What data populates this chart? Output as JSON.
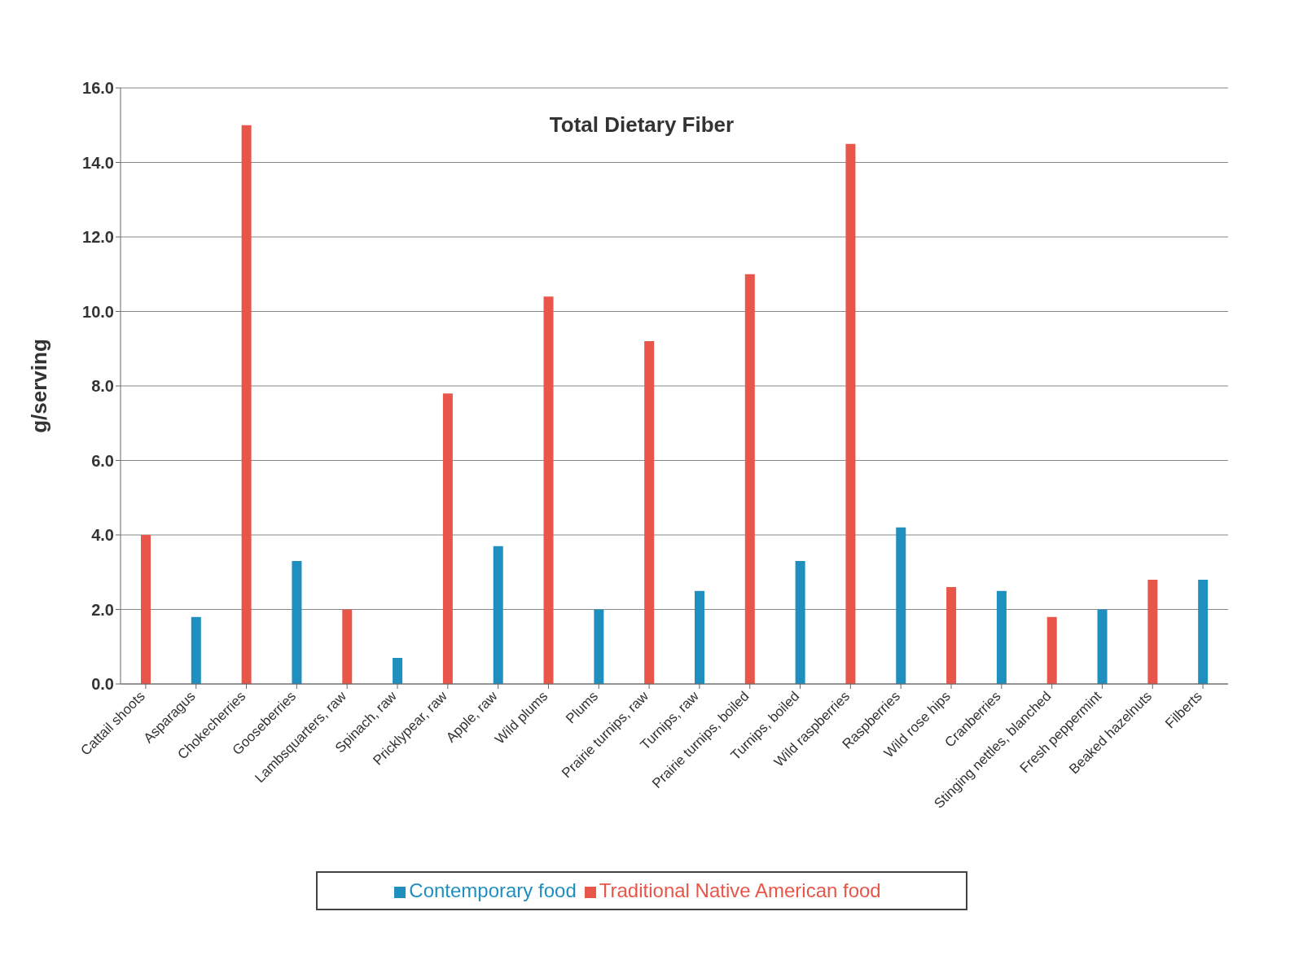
{
  "chart_data": {
    "type": "bar",
    "title": "Total Dietary Fiber",
    "ylabel": "g/serving",
    "categories": [
      "Cattail shoots",
      "Asparagus",
      "Chokecherries",
      "Gooseberries",
      "Lambsquarters, raw",
      "Spinach, raw",
      "Pricklypear, raw",
      "Apple, raw",
      "Wild plums",
      "Plums",
      "Prairie turnips, raw",
      "Turnips, raw",
      "Prairie turnips, boiled",
      "Turnips, boiled",
      "Wild raspberries",
      "Raspberries",
      "Wild rose hips",
      "Cranberries",
      "Stinging nettles, blanched",
      "Fresh peppermint",
      "Beaked hazelnuts",
      "Filberts"
    ],
    "series": [
      {
        "name": "Contemporary food",
        "color": "#1f8fbf",
        "values": [
          null,
          1.8,
          null,
          3.3,
          null,
          0.7,
          null,
          3.7,
          null,
          2.0,
          null,
          2.5,
          null,
          3.3,
          null,
          4.2,
          null,
          2.5,
          null,
          2.0,
          null,
          2.8
        ]
      },
      {
        "name": "Traditional Native American food",
        "color": "#e8564a",
        "values": [
          4.0,
          null,
          15.0,
          null,
          2.0,
          null,
          7.8,
          null,
          10.4,
          null,
          9.2,
          null,
          11.0,
          null,
          14.5,
          null,
          2.6,
          null,
          1.8,
          null,
          2.8,
          null
        ]
      }
    ],
    "stacked": true,
    "ylim": [
      0,
      16
    ],
    "yticks": [
      {
        "value": 0,
        "label": "0.0"
      },
      {
        "value": 2,
        "label": "2.0"
      },
      {
        "value": 4,
        "label": "4.0"
      },
      {
        "value": 6,
        "label": "6.0"
      },
      {
        "value": 8,
        "label": "8.0"
      },
      {
        "value": 10,
        "label": "10.0"
      },
      {
        "value": 12,
        "label": "12.0"
      },
      {
        "value": 14,
        "label": "14.0"
      },
      {
        "value": 16,
        "label": "16.0"
      }
    ],
    "grid": "y",
    "legend": "bottom"
  }
}
